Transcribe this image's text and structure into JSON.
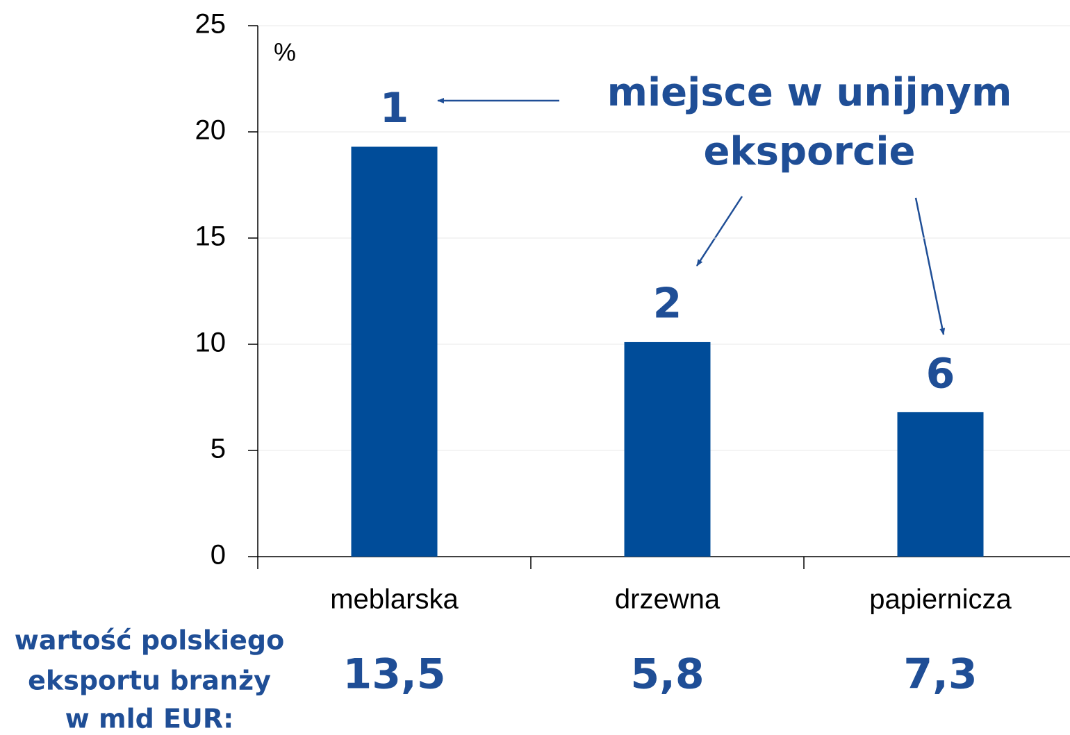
{
  "chart_data": {
    "type": "bar",
    "ylabel": "%",
    "categories": [
      "meblarska",
      "drzewna",
      "papiernicza"
    ],
    "values": [
      19.3,
      10.1,
      6.8
    ],
    "color": "#004c99",
    "ylim": [
      0,
      25
    ],
    "yticks": [
      0,
      5,
      10,
      15,
      20,
      25
    ],
    "grid": true,
    "ranks": [
      "1",
      "2",
      "6"
    ],
    "rank_note": [
      "miejsce w unijnym",
      "eksporcie"
    ],
    "export_note": [
      "wartość polskiego",
      "eksportu branży",
      "w mld EUR:"
    ],
    "export_values": [
      "13,5",
      "5,8",
      "7,3"
    ]
  }
}
